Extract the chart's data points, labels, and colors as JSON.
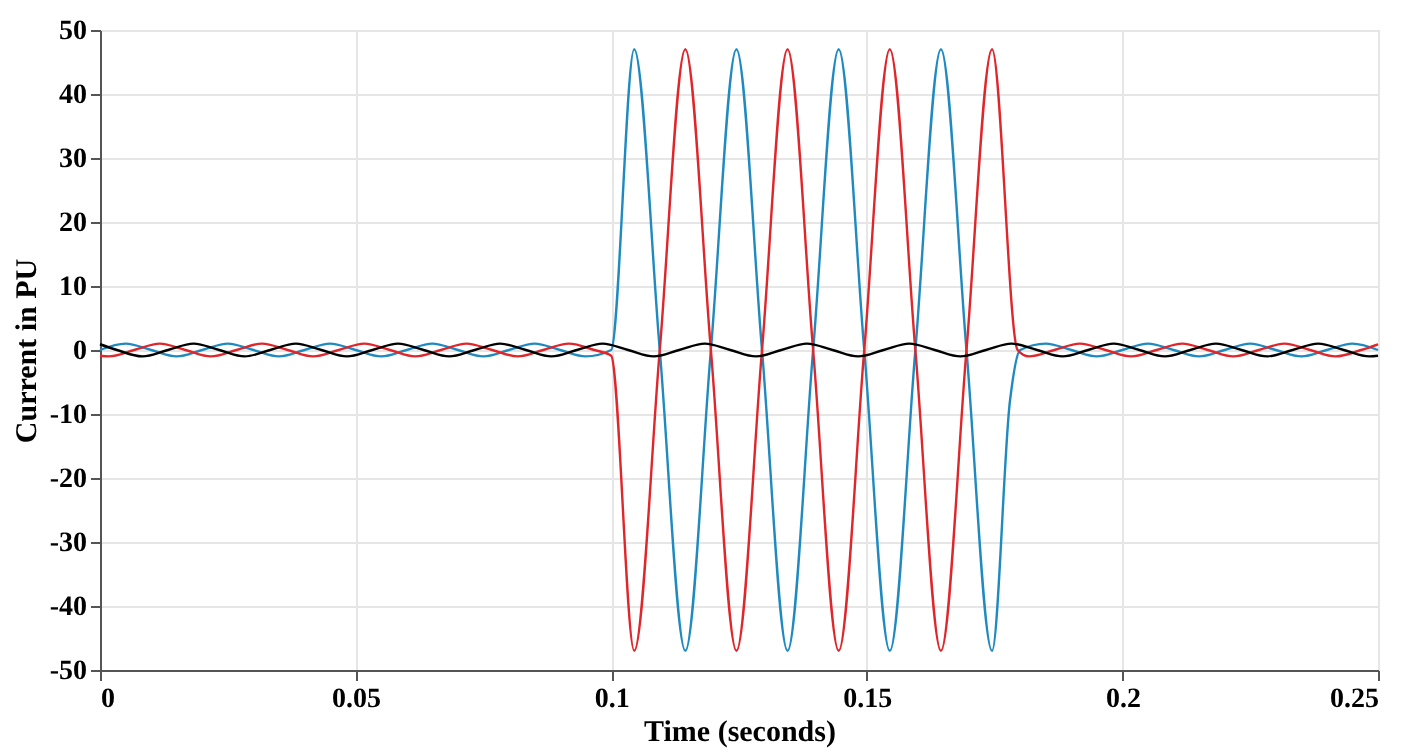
{
  "chart_data": {
    "type": "line",
    "xlabel": "Time (seconds)",
    "ylabel": "Current in PU",
    "xlim": [
      0,
      0.25
    ],
    "xticks": [
      0,
      0.05,
      0.1,
      0.15,
      0.2,
      0.25
    ],
    "ylim": [
      -50,
      50
    ],
    "yticks": [
      -50,
      -40,
      -30,
      -20,
      -10,
      0,
      10,
      20,
      30,
      40,
      50
    ],
    "grid": true,
    "marker": "none",
    "line_style": "solid",
    "series": [
      {
        "color": "#1f8ac0",
        "x": [
          0,
          0.005,
          0.01,
          0.015,
          0.02,
          0.025,
          0.03,
          0.035,
          0.04,
          0.045,
          0.05,
          0.055,
          0.06,
          0.065,
          0.07,
          0.075,
          0.08,
          0.085,
          0.09,
          0.095,
          0.1,
          0.1045,
          0.1095,
          0.1145,
          0.1195,
          0.1245,
          0.1295,
          0.1345,
          0.1395,
          0.1445,
          0.1495,
          0.1545,
          0.1595,
          0.1645,
          0.1695,
          0.1745,
          0.178,
          0.18,
          0.185,
          0.19,
          0.195,
          0.2,
          0.205,
          0.21,
          0.215,
          0.22,
          0.225,
          0.23,
          0.235,
          0.24,
          0.245,
          0.25
        ],
        "values": [
          0,
          1,
          0,
          -1,
          0,
          1,
          0,
          -1,
          0,
          1,
          0,
          -1,
          0,
          1,
          0,
          -1,
          0,
          1,
          0,
          -1,
          0,
          47,
          0,
          -47,
          0,
          47,
          0,
          -47,
          0,
          47,
          0,
          -47,
          0,
          47,
          0,
          -47,
          -8,
          0,
          1,
          0,
          -1,
          0,
          1,
          0,
          -1,
          0,
          1,
          0,
          -1,
          0,
          1,
          0
        ]
      },
      {
        "color": "#e0262b",
        "x": [
          0,
          0.0017,
          0.0067,
          0.0117,
          0.0167,
          0.0217,
          0.0267,
          0.0317,
          0.0367,
          0.0417,
          0.0467,
          0.0517,
          0.0567,
          0.0617,
          0.0667,
          0.0717,
          0.0767,
          0.0817,
          0.0867,
          0.0917,
          0.0967,
          0.1,
          0.1045,
          0.1095,
          0.1145,
          0.1195,
          0.1245,
          0.1295,
          0.1345,
          0.1395,
          0.1445,
          0.1495,
          0.1545,
          0.1595,
          0.1645,
          0.1695,
          0.1745,
          0.1795,
          0.1817,
          0.1867,
          0.1917,
          0.1967,
          0.2017,
          0.2067,
          0.2117,
          0.2167,
          0.2217,
          0.2267,
          0.2317,
          0.2367,
          0.2417,
          0.2467,
          0.25
        ],
        "values": [
          -0.9,
          -1,
          0,
          1,
          0,
          -1,
          0,
          1,
          0,
          -1,
          0,
          1,
          0,
          -1,
          0,
          1,
          0,
          -1,
          0,
          1,
          0,
          -0.9,
          -47,
          0,
          47,
          0,
          -47,
          0,
          47,
          0,
          -47,
          0,
          47,
          0,
          -47,
          0,
          47,
          0,
          -1,
          0,
          1,
          0,
          -1,
          0,
          1,
          0,
          -1,
          0,
          1,
          0,
          -1,
          0,
          0.9
        ]
      },
      {
        "color": "#000000",
        "x": [
          0,
          0.0033,
          0.0083,
          0.0133,
          0.0183,
          0.0233,
          0.0283,
          0.0333,
          0.0383,
          0.0433,
          0.0483,
          0.0533,
          0.0583,
          0.0633,
          0.0683,
          0.0733,
          0.0783,
          0.0833,
          0.0883,
          0.0933,
          0.0983,
          0.1033,
          0.1083,
          0.1133,
          0.1183,
          0.1233,
          0.1283,
          0.1333,
          0.1383,
          0.1433,
          0.1483,
          0.1533,
          0.1583,
          0.1633,
          0.1683,
          0.1733,
          0.1783,
          0.1833,
          0.1883,
          0.1933,
          0.1983,
          0.2033,
          0.2083,
          0.2133,
          0.2183,
          0.2233,
          0.2283,
          0.2333,
          0.2383,
          0.2433,
          0.2483,
          0.25
        ],
        "values": [
          0.9,
          0,
          -1,
          0,
          1,
          0,
          -1,
          0,
          1,
          0,
          -1,
          0,
          1,
          0,
          -1,
          0,
          1,
          0,
          -1,
          0,
          1,
          0,
          -1,
          0,
          1,
          0,
          -1,
          0,
          1,
          0,
          -1,
          0,
          1,
          0,
          -1,
          0,
          1,
          0,
          -1,
          0,
          1,
          0,
          -1,
          0,
          1,
          0,
          -1,
          0,
          1,
          0,
          -1,
          -0.9
        ]
      }
    ]
  }
}
